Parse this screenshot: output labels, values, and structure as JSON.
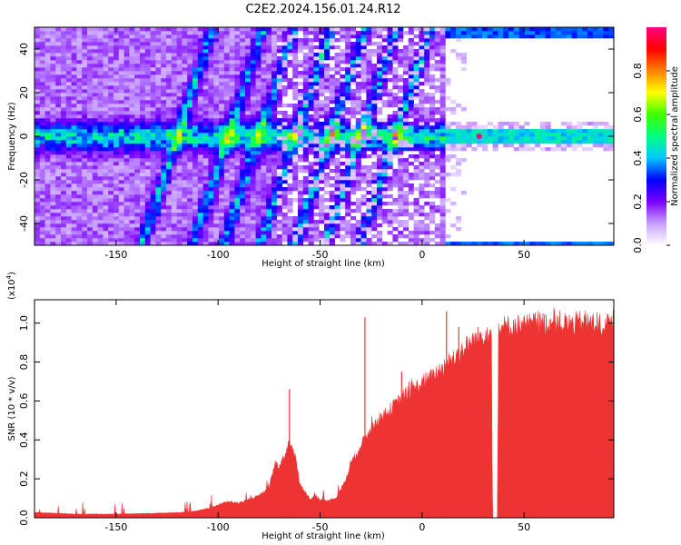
{
  "figure_title": "C2E2.2024.156.01.24.R12",
  "colorbar": {
    "label": "Normalized spectral amplitude",
    "ticks": [
      "0.0",
      "0.2",
      "0.4",
      "0.6",
      "0.8"
    ],
    "tick_values": [
      0.0,
      0.2,
      0.4,
      0.6,
      0.8
    ],
    "range": [
      0,
      1
    ],
    "colormap": [
      "#ffffff",
      "#c8a0ff",
      "#7a00ff",
      "#0000ff",
      "#00c8ff",
      "#00ff80",
      "#40ff00",
      "#ffff00",
      "#ff8000",
      "#ff0000",
      "#ff0080"
    ]
  },
  "chart_data": [
    {
      "type": "heatmap",
      "title": "",
      "xlabel": "Height of straight line (km)",
      "ylabel": "Frequency (Hz)",
      "xlim": [
        -190,
        94
      ],
      "ylim": [
        -50,
        50
      ],
      "xticks": [
        -150,
        -100,
        -50,
        0,
        50
      ],
      "xtick_labels": [
        "-150",
        "-100",
        "-50",
        "0",
        "50"
      ],
      "yticks": [
        -40,
        -20,
        0,
        20,
        40
      ],
      "ytick_labels": [
        "-40",
        "-20",
        "0",
        "20",
        "40"
      ],
      "features": [
        {
          "name": "0 Hz band",
          "frequency": 0,
          "x_range": [
            -190,
            94
          ],
          "peak_amplitude": 1.0,
          "peak_x": 28
        },
        {
          "name": "+50 Hz band",
          "frequency": 48,
          "x_range": [
            12,
            94
          ],
          "peak_amplitude": 0.35
        },
        {
          "name": "-50 Hz band",
          "frequency": -50,
          "x_range": [
            12,
            94
          ],
          "peak_amplitude": 0.35
        }
      ],
      "diagonal_streaks_x_at_0Hz": [
        -120,
        -95,
        -80,
        -62,
        -45,
        -30,
        -13
      ]
    },
    {
      "type": "area",
      "title": "",
      "xlabel": "Height of straight line (km)",
      "ylabel": "SNR (10 * v/v)",
      "scale_label": "(x10",
      "scale_exponent": "4",
      "scale_suffix": ")",
      "xlim": [
        -190,
        94
      ],
      "ylim": [
        0,
        1.12
      ],
      "xticks": [
        -150,
        -100,
        -50,
        0,
        50
      ],
      "xtick_labels": [
        "-150",
        "-100",
        "-50",
        "0",
        "50"
      ],
      "yticks": [
        0.0,
        0.2,
        0.4,
        0.6,
        0.8,
        1.0
      ],
      "ytick_labels": [
        "0.0",
        "0.2",
        "0.4",
        "0.6",
        "0.8",
        "1.0"
      ],
      "color": "#ee3333",
      "x": [
        -190,
        -170,
        -150,
        -130,
        -115,
        -105,
        -100,
        -95,
        -90,
        -85,
        -80,
        -75,
        -72,
        -70,
        -67,
        -65,
        -62,
        -60,
        -57,
        -55,
        -52,
        -50,
        -47,
        -45,
        -42,
        -40,
        -37,
        -35,
        -32,
        -30,
        -27,
        -25,
        -22,
        -20,
        -17,
        -15,
        -12,
        -10,
        -7,
        -5,
        -2,
        0,
        5,
        10,
        15,
        20,
        25,
        30,
        34,
        34.5,
        37,
        37.5,
        40,
        45,
        50,
        55,
        60,
        65,
        70,
        75,
        80,
        85,
        90,
        94
      ],
      "values": [
        0.03,
        0.02,
        0.02,
        0.025,
        0.03,
        0.05,
        0.07,
        0.09,
        0.08,
        0.1,
        0.12,
        0.16,
        0.3,
        0.28,
        0.35,
        0.42,
        0.33,
        0.18,
        0.14,
        0.1,
        0.12,
        0.1,
        0.09,
        0.1,
        0.11,
        0.15,
        0.22,
        0.3,
        0.35,
        0.4,
        0.45,
        0.5,
        0.52,
        0.55,
        0.57,
        0.6,
        0.63,
        0.66,
        0.68,
        0.7,
        0.72,
        0.74,
        0.77,
        0.82,
        0.87,
        0.92,
        0.97,
        1.0,
        1.02,
        0.0,
        0.0,
        1.03,
        1.04,
        1.05,
        1.05,
        1.06,
        1.06,
        1.07,
        1.06,
        1.06,
        1.07,
        1.06,
        1.05,
        1.05
      ],
      "spikes": [
        {
          "x": -65,
          "value": 0.66
        },
        {
          "x": -28,
          "value": 1.03
        },
        {
          "x": -10,
          "value": 0.75
        },
        {
          "x": 12,
          "value": 1.06
        },
        {
          "x": 18,
          "value": 0.98
        }
      ]
    }
  ]
}
